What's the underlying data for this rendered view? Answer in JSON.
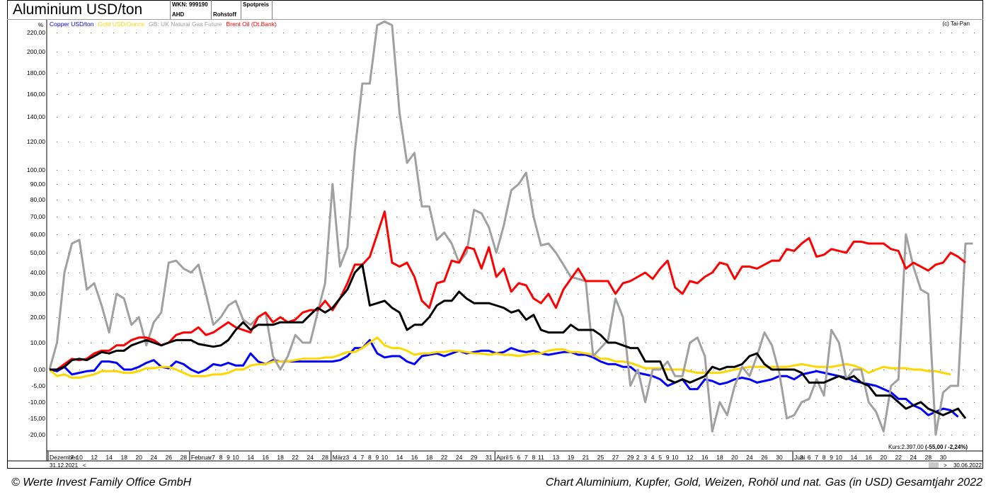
{
  "header": {
    "title": "Aluminium USD/ton",
    "wkn": "WKN: 999190",
    "ahd": "AHD",
    "type": "Rohstoff",
    "price": "Spotpreis"
  },
  "chart_data": {
    "type": "line",
    "ylabel": "%",
    "credit": "(c) Tai-Pan",
    "kurs": "Kurs:2.397,00",
    "kurs_change": "(-55,00 / -2,24%)",
    "date_start": "31.12.2021",
    "date_end": "30.06.2022",
    "nav_left": "<",
    "nav_right": ">",
    "y_ticks": [
      {
        "v": 220,
        "label": "220,00"
      },
      {
        "v": 200,
        "label": "200,00"
      },
      {
        "v": 180,
        "label": "180,00"
      },
      {
        "v": 160,
        "label": "160,00"
      },
      {
        "v": 140,
        "label": "140,00"
      },
      {
        "v": 120,
        "label": "120,00"
      },
      {
        "v": 100,
        "label": "100,00"
      },
      {
        "v": 90,
        "label": "90,00"
      },
      {
        "v": 80,
        "label": "80,00"
      },
      {
        "v": 70,
        "label": "70,00"
      },
      {
        "v": 60,
        "label": "60,00"
      },
      {
        "v": 50,
        "label": "50,00"
      },
      {
        "v": 40,
        "label": "40,00"
      },
      {
        "v": 30,
        "label": "30,00"
      },
      {
        "v": 20,
        "label": "20,00"
      },
      {
        "v": 10,
        "label": "10,00"
      },
      {
        "v": 0,
        "label": "0,00"
      },
      {
        "v": -5,
        "label": "-5,00"
      },
      {
        "v": -10,
        "label": "-10,00"
      },
      {
        "v": -15,
        "label": "-15,00"
      },
      {
        "v": -20,
        "label": "-20,00"
      }
    ],
    "x_ticks": [
      {
        "i": 0,
        "label": "Dezember",
        "month": true
      },
      {
        "i": 3,
        "label": "7"
      },
      {
        "i": 4,
        "label": "10"
      },
      {
        "i": 6,
        "label": "12"
      },
      {
        "i": 8,
        "label": "14"
      },
      {
        "i": 10,
        "label": "18"
      },
      {
        "i": 12,
        "label": "20"
      },
      {
        "i": 14,
        "label": "24"
      },
      {
        "i": 16,
        "label": "26"
      },
      {
        "i": 18,
        "label": "28"
      },
      {
        "i": 19,
        "label": "Februar",
        "month": true
      },
      {
        "i": 22,
        "label": "7"
      },
      {
        "i": 23,
        "label": "8"
      },
      {
        "i": 24,
        "label": "9"
      },
      {
        "i": 25,
        "label": "10"
      },
      {
        "i": 27,
        "label": "14"
      },
      {
        "i": 29,
        "label": "16"
      },
      {
        "i": 31,
        "label": "18"
      },
      {
        "i": 33,
        "label": "22"
      },
      {
        "i": 35,
        "label": "24"
      },
      {
        "i": 37,
        "label": "28"
      },
      {
        "i": 38,
        "label": "März",
        "month": true
      },
      {
        "i": 40,
        "label": "3"
      },
      {
        "i": 41,
        "label": "4"
      },
      {
        "i": 42,
        "label": "7"
      },
      {
        "i": 43,
        "label": "8"
      },
      {
        "i": 44,
        "label": "9"
      },
      {
        "i": 45,
        "label": "10"
      },
      {
        "i": 47,
        "label": "14"
      },
      {
        "i": 49,
        "label": "16"
      },
      {
        "i": 51,
        "label": "18"
      },
      {
        "i": 53,
        "label": "22"
      },
      {
        "i": 55,
        "label": "24"
      },
      {
        "i": 57,
        "label": "29"
      },
      {
        "i": 59,
        "label": "31"
      },
      {
        "i": 60,
        "label": "April",
        "month": true
      },
      {
        "i": 62,
        "label": "5"
      },
      {
        "i": 63,
        "label": "6"
      },
      {
        "i": 64,
        "label": "7"
      },
      {
        "i": 65,
        "label": "8"
      },
      {
        "i": 66,
        "label": "11"
      },
      {
        "i": 68,
        "label": "13"
      },
      {
        "i": 70,
        "label": "19"
      },
      {
        "i": 72,
        "label": "21"
      },
      {
        "i": 74,
        "label": "25"
      },
      {
        "i": 76,
        "label": "27"
      },
      {
        "i": 78,
        "label": "29"
      },
      {
        "i": 79,
        "label": "2"
      },
      {
        "i": 80,
        "label": "3"
      },
      {
        "i": 81,
        "label": "4"
      },
      {
        "i": 82,
        "label": "5"
      },
      {
        "i": 83,
        "label": "9"
      },
      {
        "i": 84,
        "label": "10"
      },
      {
        "i": 86,
        "label": "12"
      },
      {
        "i": 88,
        "label": "16"
      },
      {
        "i": 90,
        "label": "18"
      },
      {
        "i": 92,
        "label": "20"
      },
      {
        "i": 94,
        "label": "24"
      },
      {
        "i": 96,
        "label": "26"
      },
      {
        "i": 98,
        "label": "30"
      },
      {
        "i": 100,
        "label": "Juni",
        "month": true
      },
      {
        "i": 101,
        "label": "3"
      },
      {
        "i": 102,
        "label": "6"
      },
      {
        "i": 103,
        "label": "7"
      },
      {
        "i": 104,
        "label": "8"
      },
      {
        "i": 105,
        "label": "9"
      },
      {
        "i": 106,
        "label": "10"
      },
      {
        "i": 108,
        "label": "14"
      },
      {
        "i": 110,
        "label": "16"
      },
      {
        "i": 112,
        "label": "20"
      },
      {
        "i": 114,
        "label": "22"
      },
      {
        "i": 116,
        "label": "24"
      },
      {
        "i": 118,
        "label": "28"
      },
      {
        "i": 120,
        "label": "30"
      }
    ],
    "series": [
      {
        "name": "Copper USD/ton",
        "color": "#0000ff",
        "values": [
          0,
          -0.5,
          1,
          -1.5,
          -1,
          -0.5,
          -0.3,
          3,
          3,
          2.5,
          0,
          0,
          1,
          2.5,
          3.5,
          1,
          0.5,
          3,
          2,
          0,
          -1,
          0,
          2,
          1.5,
          2.5,
          1.5,
          1.5,
          6,
          3,
          2,
          3.5,
          3,
          3,
          3,
          3,
          3,
          3,
          3,
          3,
          3.5,
          5,
          8,
          8,
          11,
          6,
          4.5,
          5,
          5,
          3,
          2,
          5,
          5.5,
          6,
          5,
          6,
          7,
          6,
          6.5,
          7,
          7,
          6,
          6.5,
          8,
          7,
          6.5,
          7,
          6,
          5.5,
          6,
          6.5,
          6.5,
          5.5,
          5.5,
          4.5,
          3,
          2,
          2,
          1,
          1,
          -1,
          -1.5,
          -2,
          -3,
          -5,
          -4,
          -3,
          -6,
          -6,
          -3,
          -3.5,
          -4.5,
          -4,
          -3,
          -2.5,
          -3,
          -4,
          -3.5,
          -3,
          -2,
          -2,
          -3,
          -1.5,
          -1,
          -0.5,
          -1,
          -1.5,
          -2,
          -2.5,
          -3.5,
          -4,
          -4.5,
          -5,
          -6,
          -7,
          -9,
          -9,
          -11,
          -12,
          -14,
          -13,
          -12,
          -12.5,
          -14.5
        ]
      },
      {
        "name": "Gold USD/Ounce",
        "color": "#ffd700",
        "values": [
          0,
          -2,
          -1.5,
          -2.5,
          -2.5,
          -2,
          -1.5,
          -0.5,
          -0.5,
          -0.5,
          -1,
          -1,
          -0.5,
          0.5,
          0.5,
          1,
          1,
          0,
          -1,
          -2,
          -2,
          -2,
          -1.5,
          -1.5,
          -1,
          0,
          0,
          1.5,
          2,
          2,
          3,
          3,
          3,
          3.5,
          4,
          4,
          4,
          4.5,
          4.5,
          5.5,
          6.5,
          6.5,
          8,
          10,
          12,
          9,
          8,
          8,
          7,
          5.5,
          6,
          6,
          6.5,
          6.5,
          7,
          7,
          6.5,
          6,
          6,
          5.5,
          6,
          5.5,
          5.5,
          5,
          5.5,
          6,
          6,
          7,
          7.5,
          7.5,
          6.5,
          6.5,
          6,
          5.5,
          4,
          4,
          3,
          3,
          2.5,
          1.5,
          0.5,
          0.5,
          0.5,
          0,
          0,
          0,
          -0.5,
          -1,
          -1,
          -1,
          -1,
          -0.5,
          0,
          0.5,
          1,
          1,
          1,
          1,
          1,
          1,
          1.5,
          2,
          1.5,
          1,
          1,
          1,
          1.5,
          2,
          1.5,
          0.5,
          -1,
          0,
          1,
          0.5,
          0.5,
          0.5,
          0,
          0,
          -0.5,
          -0.5,
          -1,
          -1.5
        ]
      },
      {
        "name": "GB: UK Natural Gas Future",
        "color": "#a0a0a0",
        "values": [
          0,
          10,
          40,
          55,
          57,
          32,
          35,
          25,
          14,
          30,
          28,
          17,
          20,
          9,
          18,
          22,
          45,
          46,
          42,
          40,
          44,
          30,
          17,
          20,
          25,
          27,
          19,
          17,
          20,
          22,
          5,
          0,
          5,
          13,
          10,
          10,
          22,
          35,
          90,
          43,
          53,
          113,
          170,
          170,
          228,
          232,
          228,
          143,
          105,
          112,
          76,
          76,
          57,
          61,
          55,
          45,
          50,
          74,
          72,
          64,
          50,
          65,
          86,
          90,
          98,
          70,
          54,
          55,
          50,
          44,
          38,
          37,
          36,
          5,
          8,
          11,
          28,
          20,
          -5,
          0,
          -10,
          0,
          0,
          3,
          -2,
          -2,
          10,
          12,
          5,
          -19,
          -10,
          -14,
          -5,
          1,
          -2,
          5,
          14,
          9,
          -1,
          -15,
          -14,
          -10,
          -9,
          -3,
          -8,
          15,
          10,
          -3,
          0,
          0,
          -10,
          -13,
          -19,
          -5,
          -3,
          60,
          43,
          32,
          30,
          -20,
          -7,
          -5,
          -5,
          55,
          55
        ]
      },
      {
        "name": "Brent Oil (Dt.Bank)",
        "color": "#ff0000",
        "values": [
          0,
          0,
          2,
          4,
          3.5,
          4,
          6,
          7,
          7,
          9,
          9,
          11,
          12,
          12,
          11,
          9,
          10,
          13,
          14,
          14,
          16,
          13,
          14,
          16,
          18,
          16,
          15,
          14,
          20,
          22,
          18,
          20,
          18,
          19,
          22,
          23,
          23,
          27,
          23,
          28,
          35,
          44,
          44,
          48,
          60,
          73,
          45,
          43,
          45,
          38,
          27,
          24,
          35,
          36,
          46,
          45,
          53,
          52,
          42,
          53,
          38,
          42,
          31,
          35,
          34,
          28,
          26,
          30,
          24,
          32,
          37,
          42,
          36,
          36,
          36,
          36,
          30,
          35,
          36,
          38,
          40,
          37,
          42,
          46,
          33,
          30,
          36,
          35,
          38,
          40,
          45,
          44,
          37,
          43,
          43,
          42,
          44,
          46,
          46,
          52,
          51,
          55,
          58,
          48,
          49,
          52,
          51,
          50,
          56,
          56,
          55,
          55,
          55,
          52,
          51,
          42,
          45,
          43,
          41,
          44,
          45,
          50,
          48,
          45
        ]
      },
      {
        "name": "Aluminium USD/ton",
        "color": "#000000",
        "values": [
          0,
          0,
          1,
          3.5,
          4,
          3.5,
          5,
          6.5,
          6,
          7,
          7,
          9,
          10,
          11,
          10,
          9,
          10,
          11,
          11,
          11,
          9.5,
          9,
          8.5,
          9,
          11,
          15,
          18,
          15,
          17,
          17,
          17,
          18,
          18,
          18,
          18,
          21,
          24,
          22,
          24,
          28,
          32,
          40,
          44,
          25,
          26,
          27,
          24,
          22,
          15,
          17,
          17,
          20,
          25,
          27,
          27,
          31,
          28,
          26,
          26,
          26,
          25,
          24,
          22,
          23,
          19,
          21,
          15,
          14,
          14,
          14,
          17,
          15,
          15,
          15,
          13,
          10,
          10,
          9,
          8,
          8,
          3,
          3,
          3,
          -3,
          -4,
          -3,
          -4,
          -3,
          -2,
          1,
          0,
          1,
          1,
          2,
          5,
          6,
          2,
          0,
          0,
          0,
          0,
          -1,
          -4,
          -4,
          -4,
          -3,
          -2,
          -3,
          -2,
          -4,
          -5,
          -8,
          -8,
          -8,
          -10,
          -12,
          -11,
          -10,
          -12,
          -13,
          -14,
          -13,
          -12,
          -15
        ]
      }
    ]
  },
  "footer": {
    "left": "© Werte Invest Family Office GmbH",
    "right": "Chart Aluminium, Kupfer, Gold, Weizen, Rohöl und nat. Gas (in USD) Gesamtjahr 2022"
  }
}
